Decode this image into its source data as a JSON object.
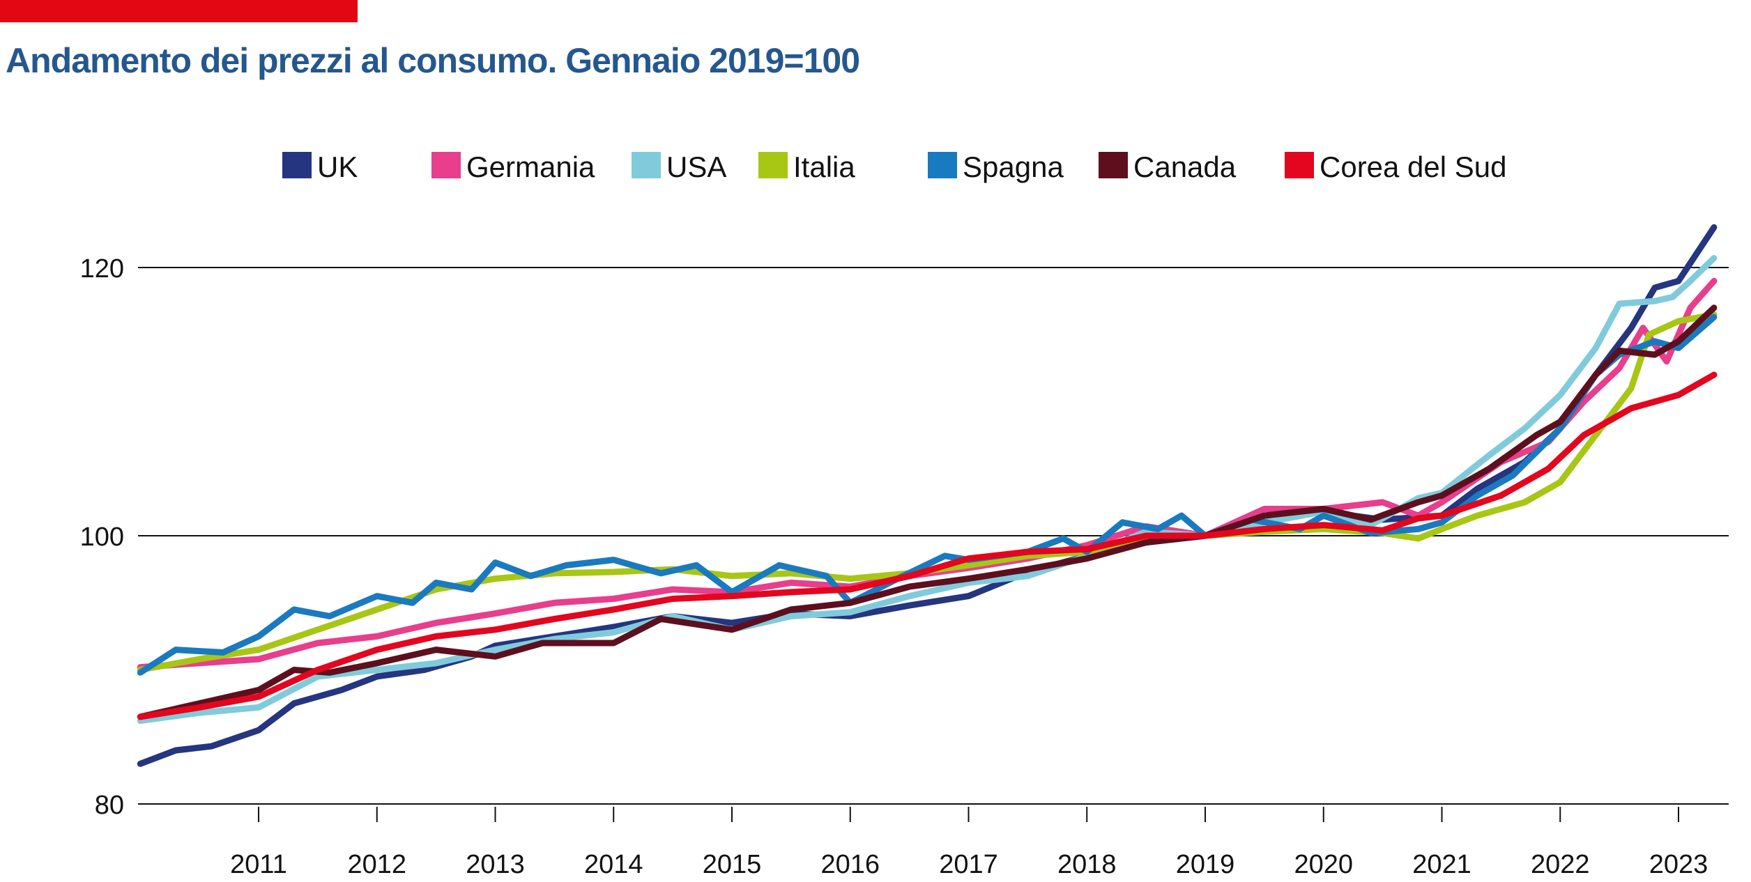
{
  "chart_data": {
    "type": "line",
    "title": "Andamento dei prezzi al consumo. Gennaio 2019=100",
    "xlabel": "",
    "ylabel": "",
    "xlim": [
      2010,
      2023.4
    ],
    "ylim": [
      80,
      125
    ],
    "y_ticks": [
      80,
      100,
      120
    ],
    "y_tick_labels": [
      "80",
      "100",
      "120"
    ],
    "x_ticks": [
      2011,
      2012,
      2013,
      2014,
      2015,
      2016,
      2017,
      2018,
      2019,
      2020,
      2021,
      2022,
      2023
    ],
    "x_tick_labels": [
      "2011",
      "2012",
      "2013",
      "2014",
      "2015",
      "2016",
      "2017",
      "2018",
      "2019",
      "2020",
      "2021",
      "2022",
      "2023"
    ],
    "grid": "horizontal at 100 and 120",
    "legend_position": "top",
    "series": [
      {
        "name": "UK",
        "color": "#253580",
        "points": [
          [
            2010.0,
            83
          ],
          [
            2010.3,
            84
          ],
          [
            2010.6,
            84.3
          ],
          [
            2011,
            85.5
          ],
          [
            2011.3,
            87.5
          ],
          [
            2011.7,
            88.5
          ],
          [
            2012,
            89.5
          ],
          [
            2012.4,
            90
          ],
          [
            2012.8,
            91
          ],
          [
            2013,
            91.8
          ],
          [
            2013.5,
            92.5
          ],
          [
            2014,
            93.2
          ],
          [
            2014.5,
            94
          ],
          [
            2015,
            93.5
          ],
          [
            2015.5,
            94.2
          ],
          [
            2016,
            94
          ],
          [
            2016.5,
            94.8
          ],
          [
            2017,
            95.5
          ],
          [
            2017.5,
            97.3
          ],
          [
            2018,
            98.5
          ],
          [
            2018.5,
            99.5
          ],
          [
            2019,
            100
          ],
          [
            2019.5,
            101.5
          ],
          [
            2020,
            101.8
          ],
          [
            2020.5,
            101.2
          ],
          [
            2021,
            101.5
          ],
          [
            2021.3,
            103.5
          ],
          [
            2021.7,
            105.5
          ],
          [
            2022,
            108
          ],
          [
            2022.3,
            112
          ],
          [
            2022.6,
            115.5
          ],
          [
            2022.8,
            118.5
          ],
          [
            2023,
            119
          ],
          [
            2023.3,
            123
          ]
        ]
      },
      {
        "name": "Germania",
        "color": "#e83e8c",
        "points": [
          [
            2010,
            90.2
          ],
          [
            2011,
            90.8
          ],
          [
            2011.5,
            92
          ],
          [
            2012,
            92.5
          ],
          [
            2012.5,
            93.5
          ],
          [
            2013,
            94.2
          ],
          [
            2013.5,
            95
          ],
          [
            2014,
            95.3
          ],
          [
            2014.5,
            96
          ],
          [
            2015,
            95.8
          ],
          [
            2015.5,
            96.5
          ],
          [
            2016,
            96.2
          ],
          [
            2016.5,
            97
          ],
          [
            2017,
            97.6
          ],
          [
            2017.5,
            98.3
          ],
          [
            2018,
            99.3
          ],
          [
            2018.5,
            100.7
          ],
          [
            2019,
            100
          ],
          [
            2019.5,
            102
          ],
          [
            2020,
            102
          ],
          [
            2020.5,
            102.5
          ],
          [
            2020.8,
            101.5
          ],
          [
            2021,
            102.5
          ],
          [
            2021.5,
            105.5
          ],
          [
            2021.9,
            107
          ],
          [
            2022.2,
            110
          ],
          [
            2022.5,
            112.5
          ],
          [
            2022.7,
            115.5
          ],
          [
            2022.9,
            113
          ],
          [
            2023.1,
            117
          ],
          [
            2023.3,
            119
          ]
        ]
      },
      {
        "name": "USA",
        "color": "#7fcbdc",
        "points": [
          [
            2010,
            86.2
          ],
          [
            2010.5,
            86.8
          ],
          [
            2011,
            87.2
          ],
          [
            2011.5,
            89.5
          ],
          [
            2012,
            90
          ],
          [
            2012.5,
            90.5
          ],
          [
            2013,
            91.5
          ],
          [
            2013.5,
            92.3
          ],
          [
            2014,
            92.8
          ],
          [
            2014.5,
            94
          ],
          [
            2015,
            93
          ],
          [
            2015.5,
            94
          ],
          [
            2016,
            94.3
          ],
          [
            2016.5,
            95.5
          ],
          [
            2017,
            96.5
          ],
          [
            2017.5,
            97
          ],
          [
            2018,
            98.5
          ],
          [
            2018.5,
            100.3
          ],
          [
            2019,
            100
          ],
          [
            2019.5,
            101
          ],
          [
            2020,
            101.8
          ],
          [
            2020.4,
            100.8
          ],
          [
            2020.8,
            102.8
          ],
          [
            2021,
            103.2
          ],
          [
            2021.4,
            106
          ],
          [
            2021.7,
            108
          ],
          [
            2022,
            110.5
          ],
          [
            2022.3,
            114
          ],
          [
            2022.5,
            117.3
          ],
          [
            2022.8,
            117.5
          ],
          [
            2022.95,
            117.8
          ],
          [
            2023.1,
            119
          ],
          [
            2023.3,
            120.7
          ]
        ]
      },
      {
        "name": "Italia",
        "color": "#a8c614",
        "points": [
          [
            2010,
            90
          ],
          [
            2010.5,
            90.8
          ],
          [
            2011,
            91.5
          ],
          [
            2011.5,
            93
          ],
          [
            2012,
            94.5
          ],
          [
            2012.5,
            96
          ],
          [
            2013,
            96.8
          ],
          [
            2013.5,
            97.2
          ],
          [
            2014,
            97.3
          ],
          [
            2014.5,
            97.5
          ],
          [
            2015,
            97
          ],
          [
            2015.5,
            97.2
          ],
          [
            2016,
            96.8
          ],
          [
            2016.5,
            97.2
          ],
          [
            2017,
            97.8
          ],
          [
            2017.5,
            98.5
          ],
          [
            2018,
            98.8
          ],
          [
            2018.5,
            99.8
          ],
          [
            2019,
            100
          ],
          [
            2019.5,
            100.3
          ],
          [
            2020,
            100.5
          ],
          [
            2020.5,
            100.2
          ],
          [
            2020.8,
            99.8
          ],
          [
            2021,
            100.5
          ],
          [
            2021.3,
            101.5
          ],
          [
            2021.7,
            102.5
          ],
          [
            2022,
            104
          ],
          [
            2022.3,
            107.5
          ],
          [
            2022.6,
            111
          ],
          [
            2022.75,
            115
          ],
          [
            2023,
            116
          ],
          [
            2023.3,
            116.5
          ]
        ]
      },
      {
        "name": "Spagna",
        "color": "#1a7abf",
        "points": [
          [
            2010,
            89.8
          ],
          [
            2010.3,
            91.5
          ],
          [
            2010.7,
            91.3
          ],
          [
            2011,
            92.5
          ],
          [
            2011.3,
            94.5
          ],
          [
            2011.6,
            94
          ],
          [
            2012,
            95.5
          ],
          [
            2012.3,
            95
          ],
          [
            2012.5,
            96.5
          ],
          [
            2012.8,
            96
          ],
          [
            2013,
            98
          ],
          [
            2013.3,
            97
          ],
          [
            2013.6,
            97.8
          ],
          [
            2014,
            98.2
          ],
          [
            2014.4,
            97.2
          ],
          [
            2014.7,
            97.8
          ],
          [
            2015,
            95.8
          ],
          [
            2015.4,
            97.8
          ],
          [
            2015.8,
            97
          ],
          [
            2016,
            95
          ],
          [
            2016.4,
            96.8
          ],
          [
            2016.8,
            98.5
          ],
          [
            2017,
            98.2
          ],
          [
            2017.5,
            98.8
          ],
          [
            2017.8,
            99.8
          ],
          [
            2018,
            98.8
          ],
          [
            2018.3,
            101
          ],
          [
            2018.6,
            100.5
          ],
          [
            2018.8,
            101.5
          ],
          [
            2019,
            100
          ],
          [
            2019.4,
            101.2
          ],
          [
            2019.8,
            100.5
          ],
          [
            2020,
            101.5
          ],
          [
            2020.4,
            100.2
          ],
          [
            2020.8,
            100.5
          ],
          [
            2021,
            101
          ],
          [
            2021.3,
            103
          ],
          [
            2021.6,
            104.5
          ],
          [
            2022,
            108
          ],
          [
            2022.3,
            112
          ],
          [
            2022.5,
            113.5
          ],
          [
            2022.8,
            114.5
          ],
          [
            2023,
            114
          ],
          [
            2023.3,
            116.3
          ]
        ]
      },
      {
        "name": "Canada",
        "color": "#5e0f1e",
        "points": [
          [
            2010,
            86.5
          ],
          [
            2010.5,
            87.5
          ],
          [
            2011,
            88.5
          ],
          [
            2011.3,
            90
          ],
          [
            2011.6,
            89.8
          ],
          [
            2012,
            90.5
          ],
          [
            2012.5,
            91.5
          ],
          [
            2013,
            91
          ],
          [
            2013.4,
            92
          ],
          [
            2014,
            92
          ],
          [
            2014.4,
            93.8
          ],
          [
            2015,
            93
          ],
          [
            2015.5,
            94.5
          ],
          [
            2016,
            95
          ],
          [
            2016.5,
            96.2
          ],
          [
            2017,
            96.8
          ],
          [
            2017.5,
            97.5
          ],
          [
            2018,
            98.3
          ],
          [
            2018.5,
            99.5
          ],
          [
            2019,
            100
          ],
          [
            2019.5,
            101.5
          ],
          [
            2020,
            102
          ],
          [
            2020.4,
            101.2
          ],
          [
            2020.8,
            102.5
          ],
          [
            2021,
            103
          ],
          [
            2021.4,
            105
          ],
          [
            2021.8,
            107.5
          ],
          [
            2022,
            108.5
          ],
          [
            2022.3,
            112
          ],
          [
            2022.5,
            113.8
          ],
          [
            2022.8,
            113.5
          ],
          [
            2023,
            114.5
          ],
          [
            2023.3,
            117
          ]
        ]
      },
      {
        "name": "Corea del Sud",
        "color": "#e3061e",
        "points": [
          [
            2010,
            86.5
          ],
          [
            2010.5,
            87.2
          ],
          [
            2011,
            88
          ],
          [
            2011.5,
            90
          ],
          [
            2012,
            91.5
          ],
          [
            2012.5,
            92.5
          ],
          [
            2013,
            93
          ],
          [
            2013.5,
            93.8
          ],
          [
            2014,
            94.5
          ],
          [
            2014.5,
            95.3
          ],
          [
            2015,
            95.5
          ],
          [
            2015.5,
            95.8
          ],
          [
            2016,
            96
          ],
          [
            2016.5,
            97
          ],
          [
            2017,
            98.3
          ],
          [
            2017.5,
            98.8
          ],
          [
            2018,
            99
          ],
          [
            2018.5,
            100
          ],
          [
            2019,
            100
          ],
          [
            2019.5,
            100.5
          ],
          [
            2020,
            100.8
          ],
          [
            2020.5,
            100.4
          ],
          [
            2020.8,
            101.3
          ],
          [
            2021,
            101.5
          ],
          [
            2021.5,
            103
          ],
          [
            2021.9,
            105
          ],
          [
            2022.2,
            107.5
          ],
          [
            2022.6,
            109.5
          ],
          [
            2023,
            110.5
          ],
          [
            2023.3,
            112
          ]
        ]
      }
    ]
  },
  "colors": {
    "accent_bar": "#e30613",
    "title": "#25578f"
  }
}
